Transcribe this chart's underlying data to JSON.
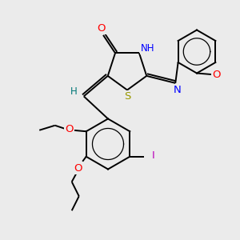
{
  "bg_color": "#ebebeb",
  "bond_color": "#000000",
  "atom_colors": {
    "O": "#ff0000",
    "N": "#0000ff",
    "S": "#999900",
    "I": "#bb00bb",
    "H": "#007777",
    "C": "#000000"
  },
  "font_size": 8.5,
  "line_width": 1.4
}
